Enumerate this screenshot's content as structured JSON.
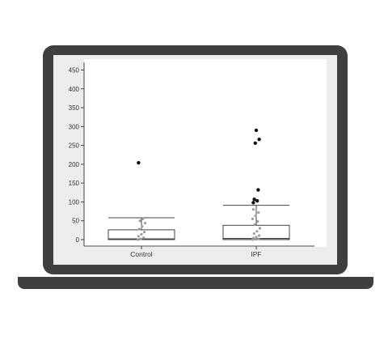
{
  "chart_data": {
    "type": "box",
    "title": "",
    "xlabel": "",
    "ylabel": "",
    "ylim": [
      0,
      470
    ],
    "yticks": [
      "0",
      "50",
      "100",
      "150",
      "200",
      "250",
      "300",
      "350",
      "400",
      "450"
    ],
    "categories": [
      "Control",
      "IPF"
    ],
    "boxes": [
      {
        "category": "Control",
        "q1": 0,
        "median": 2,
        "q3": 26,
        "whisker_low": 0,
        "whisker_high": 58,
        "outliers": [
          204
        ],
        "points": [
          0,
          2,
          5,
          9,
          14,
          20,
          28,
          35,
          44,
          50,
          55
        ]
      },
      {
        "category": "IPF",
        "q1": 0,
        "median": 3,
        "q3": 38,
        "whisker_low": 0,
        "whisker_high": 91,
        "outliers": [
          98,
          103,
          107,
          132,
          256,
          266,
          290
        ],
        "points": [
          0,
          1,
          2,
          4,
          7,
          11,
          16,
          22,
          30,
          40,
          48,
          55,
          63,
          72,
          80
        ]
      }
    ],
    "grid": false,
    "legend": "none"
  },
  "colors": {
    "frame": "#3f3f3f",
    "screen": "#ededed",
    "plot_bg": "#ffffff",
    "axis": "#444444",
    "outlier": "#111111",
    "points": "#9e9e9e"
  }
}
